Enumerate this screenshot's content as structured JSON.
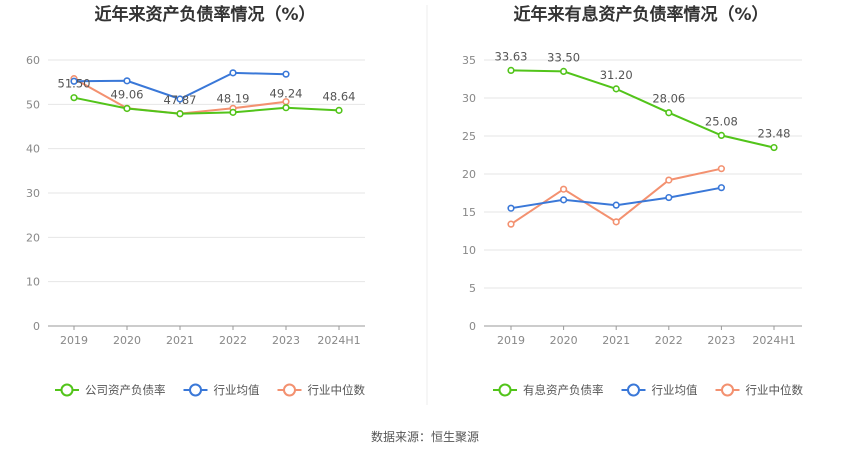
{
  "source_text": "数据来源：恒生聚源",
  "chart_data": [
    {
      "type": "line",
      "title": "近年来资产负债率情况（%）",
      "categories": [
        "2019",
        "2020",
        "2021",
        "2022",
        "2023",
        "2024H1"
      ],
      "ylim": [
        0,
        60
      ],
      "yticks": [
        0,
        10,
        20,
        30,
        40,
        50,
        60
      ],
      "grid": true,
      "legend_position": "bottom",
      "series": [
        {
          "name": "公司资产负债率",
          "color": "#52c41a",
          "values": [
            51.5,
            49.06,
            47.87,
            48.19,
            49.24,
            48.64
          ],
          "labels": [
            "51.50",
            "49.06",
            "47.87",
            "48.19",
            "49.24",
            "48.64"
          ]
        },
        {
          "name": "行业均值",
          "color": "#3a78d8",
          "values": [
            55.2,
            55.3,
            51.2,
            57.1,
            56.8,
            null
          ]
        },
        {
          "name": "行业中位数",
          "color": "#f39170",
          "values": [
            55.8,
            49.1,
            47.9,
            49.1,
            50.6,
            null
          ]
        }
      ]
    },
    {
      "type": "line",
      "title": "近年来有息资产负债率情况（%）",
      "categories": [
        "2019",
        "2020",
        "2021",
        "2022",
        "2023",
        "2024H1"
      ],
      "ylim": [
        0,
        35
      ],
      "yticks": [
        0,
        5,
        10,
        15,
        20,
        25,
        30,
        35
      ],
      "grid": true,
      "legend_position": "bottom",
      "series": [
        {
          "name": "有息资产负债率",
          "color": "#52c41a",
          "values": [
            33.63,
            33.5,
            31.2,
            28.06,
            25.08,
            23.48
          ],
          "labels": [
            "33.63",
            "33.50",
            "31.20",
            "28.06",
            "25.08",
            "23.48"
          ]
        },
        {
          "name": "行业均值",
          "color": "#3a78d8",
          "values": [
            15.5,
            16.6,
            15.9,
            16.9,
            18.2,
            null
          ]
        },
        {
          "name": "行业中位数",
          "color": "#f39170",
          "values": [
            13.4,
            18.0,
            13.7,
            19.2,
            20.7,
            null
          ]
        }
      ]
    }
  ]
}
